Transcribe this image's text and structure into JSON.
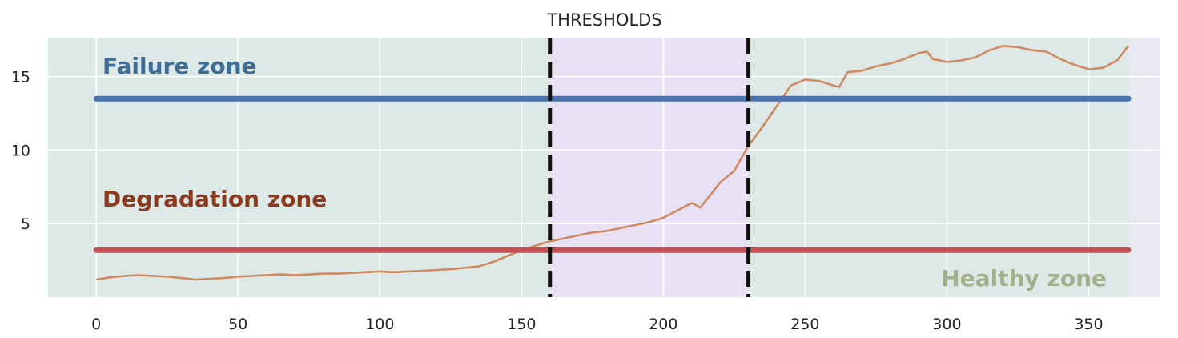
{
  "chart_data": {
    "type": "line",
    "title": "THRESHOLDS",
    "xlabel": "",
    "ylabel": "",
    "xlim": [
      -17,
      375
    ],
    "ylim": [
      0,
      17.6
    ],
    "xticks": [
      0,
      50,
      100,
      150,
      200,
      250,
      300,
      350
    ],
    "yticks": [
      5,
      10,
      15
    ],
    "grid": true,
    "background": "#e9e9f1",
    "series": [
      {
        "color": "#d08a62",
        "x": [
          0,
          5,
          10,
          15,
          20,
          25,
          30,
          35,
          40,
          45,
          50,
          55,
          60,
          65,
          70,
          75,
          80,
          85,
          90,
          95,
          100,
          105,
          110,
          115,
          120,
          125,
          130,
          135,
          140,
          145,
          150,
          155,
          160,
          165,
          170,
          175,
          180,
          185,
          190,
          195,
          200,
          205,
          210,
          213,
          216,
          220,
          225,
          230,
          235,
          240,
          245,
          250,
          255,
          260,
          262,
          265,
          270,
          275,
          280,
          285,
          290,
          293,
          295,
          300,
          305,
          310,
          315,
          320,
          325,
          330,
          335,
          340,
          345,
          350,
          355,
          360,
          364
        ],
        "y": [
          1.2,
          1.35,
          1.45,
          1.5,
          1.45,
          1.4,
          1.3,
          1.2,
          1.25,
          1.3,
          1.4,
          1.45,
          1.5,
          1.55,
          1.5,
          1.55,
          1.6,
          1.6,
          1.65,
          1.7,
          1.75,
          1.7,
          1.75,
          1.8,
          1.85,
          1.9,
          2.0,
          2.1,
          2.4,
          2.8,
          3.2,
          3.5,
          3.8,
          4.0,
          4.2,
          4.4,
          4.5,
          4.7,
          4.9,
          5.1,
          5.4,
          5.9,
          6.4,
          6.1,
          6.8,
          7.8,
          8.6,
          10.3,
          11.6,
          13.0,
          14.4,
          14.8,
          14.7,
          14.4,
          14.3,
          15.3,
          15.4,
          15.7,
          15.9,
          16.2,
          16.6,
          16.7,
          16.2,
          16.0,
          16.1,
          16.3,
          16.8,
          17.1,
          17.0,
          16.8,
          16.7,
          16.2,
          15.8,
          15.5,
          15.6,
          16.1,
          17.1
        ]
      }
    ],
    "thresholds": [
      {
        "label": "Failure zone",
        "value": 13.5,
        "color": "#4c72b0",
        "label_color": "#3f6d96"
      },
      {
        "label": "Degradation zone",
        "value": 3.2,
        "color": "#c44e52",
        "label_color": "#8b3a1e"
      }
    ],
    "zone_label_healthy": {
      "label": "Healthy zone",
      "color": "#a3ae8d"
    },
    "vertical_lines": [
      160,
      230
    ],
    "shaded_regions": [
      {
        "x_from": -17,
        "x_to": 160,
        "color": "#dde9e6"
      },
      {
        "x_from": 160,
        "x_to": 230,
        "color": "#e8e1f3"
      },
      {
        "x_from": 230,
        "x_to": 364,
        "color": "#dde9e6"
      }
    ]
  }
}
